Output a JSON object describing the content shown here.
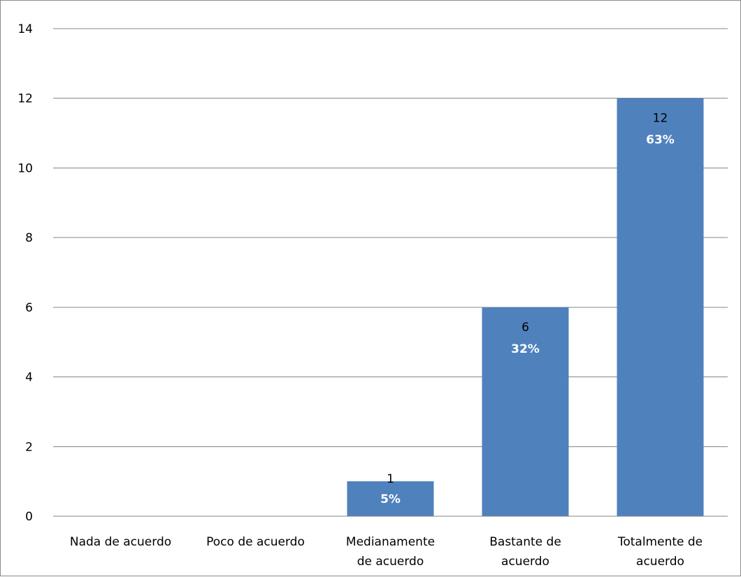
{
  "chart_data": {
    "type": "bar",
    "title": "",
    "xlabel": "",
    "ylabel": "",
    "categories": [
      [
        "Nada de acuerdo"
      ],
      [
        "Poco de acuerdo"
      ],
      [
        "Medianamente",
        "de acuerdo"
      ],
      [
        "Bastante de",
        "acuerdo"
      ],
      [
        "Totalmente de",
        "acuerdo"
      ]
    ],
    "values": [
      0,
      0,
      1,
      6,
      12
    ],
    "value_labels": [
      "",
      "",
      "1",
      "6",
      "12"
    ],
    "percent_labels": [
      "",
      "",
      "5%",
      "32%",
      "63%"
    ],
    "ylim": [
      0,
      14
    ],
    "yticks": [
      0,
      2,
      4,
      6,
      8,
      10,
      12,
      14
    ],
    "grid": true,
    "legend": "none",
    "bar_color": "#4f81bd",
    "gridline_color": "#868686",
    "value_label_color": "#000000",
    "percent_label_color": "#ffffff"
  }
}
